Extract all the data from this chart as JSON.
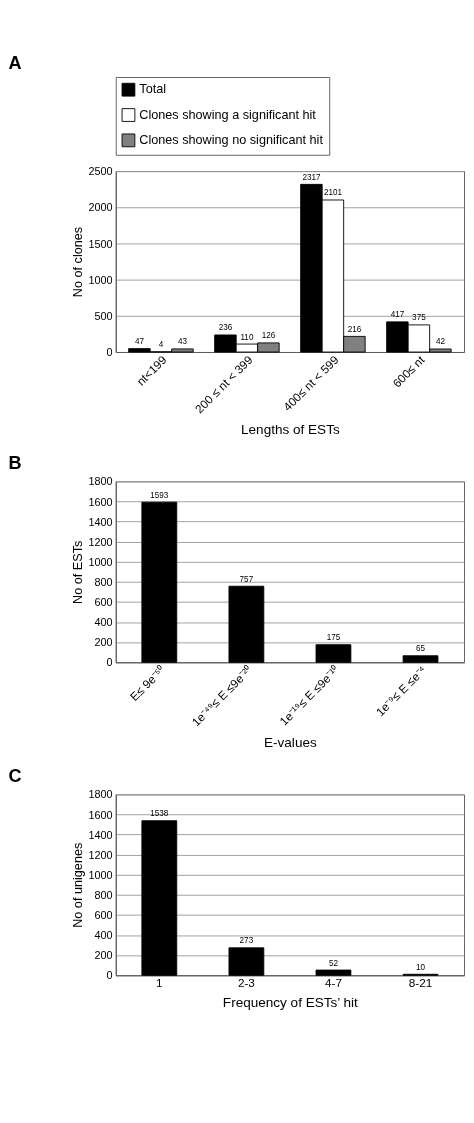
{
  "chart_data": [
    {
      "type": "bar",
      "title": "A",
      "xlabel": "Lengths of ESTs",
      "ylabel": "No of clones",
      "categories": [
        "nt<199",
        "200 ≤ nt < 399",
        "400≤ nt < 599",
        "600≤ nt"
      ],
      "series": [
        {
          "name": "Total",
          "color": "#000000",
          "values": [
            47,
            236,
            2317,
            417
          ]
        },
        {
          "name": "Clones showing a significant hit",
          "color": "#ffffff",
          "values": [
            4,
            110,
            2101,
            375
          ]
        },
        {
          "name": "Clones showing no significant hit",
          "color": "#808080",
          "values": [
            43,
            126,
            216,
            42
          ]
        }
      ],
      "ylim": [
        0,
        2500
      ],
      "yticks": [
        0,
        500,
        1000,
        1500,
        2000,
        2500
      ],
      "grid": "y",
      "legend": "top",
      "data_labels": true
    },
    {
      "type": "bar",
      "title": "B",
      "xlabel": "E-values",
      "ylabel": "No of ESTs",
      "categories": [
        "E≤ 9e⁻⁵⁰",
        "1e⁻⁴⁹≤ E ≤9e⁻²⁰",
        "1e⁻¹⁹≤ E ≤9e⁻¹⁰",
        "1e⁻⁹≤ E ≤e⁻⁴"
      ],
      "series": [
        {
          "color": "#000000",
          "values": [
            1593,
            757,
            175,
            65
          ]
        }
      ],
      "ylim": [
        0,
        1800
      ],
      "yticks": [
        0,
        200,
        400,
        600,
        800,
        1000,
        1200,
        1400,
        1600,
        1800
      ],
      "grid": "y",
      "data_labels": true
    },
    {
      "type": "bar",
      "title": "C",
      "xlabel": "Frequency of ESTs’ hit",
      "ylabel": "No of unigenes",
      "categories": [
        "1",
        "2-3",
        "4-7",
        "8-21"
      ],
      "series": [
        {
          "color": "#000000",
          "values": [
            1538,
            273,
            52,
            10
          ]
        }
      ],
      "ylim": [
        0,
        1800
      ],
      "yticks": [
        0,
        200,
        400,
        600,
        800,
        1000,
        1200,
        1400,
        1600,
        1800
      ],
      "grid": "y",
      "data_labels": true
    }
  ]
}
